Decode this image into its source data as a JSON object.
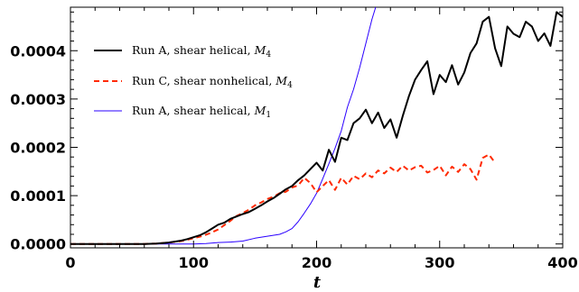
{
  "chart_data": {
    "type": "line",
    "title": "",
    "xlabel": "t",
    "ylabel": "",
    "xlim": [
      0,
      400
    ],
    "ylim": [
      -8e-06,
      0.00049
    ],
    "x_ticks": [
      0,
      100,
      200,
      300,
      400
    ],
    "x_tick_labels": [
      "0",
      "100",
      "200",
      "300",
      "400"
    ],
    "y_ticks": [
      0.0,
      0.0001,
      0.0002,
      0.0003,
      0.0004
    ],
    "y_tick_labels": [
      "0.0000",
      "0.0001",
      "0.0002",
      "0.0003",
      "0.0004"
    ],
    "legend_position": "top-left",
    "grid": false,
    "series": [
      {
        "key": "run-a-m4",
        "legend_prefix": "Run A, shear helical, ",
        "legend_symbol": "M",
        "legend_sub": "4",
        "color": "#000000",
        "line_style": "solid",
        "x": [
          0,
          20,
          40,
          60,
          70,
          80,
          90,
          95,
          100,
          105,
          110,
          115,
          120,
          125,
          130,
          135,
          140,
          145,
          150,
          155,
          160,
          165,
          170,
          175,
          180,
          185,
          190,
          195,
          200,
          205,
          210,
          215,
          220,
          225,
          230,
          235,
          240,
          245,
          250,
          255,
          260,
          265,
          270,
          275,
          280,
          285,
          290,
          295,
          300,
          305,
          310,
          315,
          320,
          325,
          330,
          335,
          340,
          345,
          350,
          355,
          360,
          365,
          370,
          375,
          380,
          385,
          390,
          395,
          400
        ],
        "y": [
          0.0,
          0.0,
          0.0,
          0.0,
          1e-06,
          3e-06,
          7e-06,
          1e-05,
          1.4e-05,
          1.8e-05,
          2.4e-05,
          3.2e-05,
          4e-05,
          4.4e-05,
          5.2e-05,
          5.7e-05,
          6.2e-05,
          6.6e-05,
          7.3e-05,
          8e-05,
          8.8e-05,
          9.5e-05,
          0.000104,
          0.000113,
          0.00012,
          0.000132,
          0.000142,
          0.000155,
          0.000168,
          0.000152,
          0.000195,
          0.00017,
          0.00022,
          0.000215,
          0.00025,
          0.00026,
          0.000278,
          0.00025,
          0.000272,
          0.00024,
          0.000258,
          0.00022,
          0.000265,
          0.000306,
          0.00034,
          0.00036,
          0.000378,
          0.00031,
          0.00035,
          0.000335,
          0.00037,
          0.00033,
          0.000355,
          0.000395,
          0.000415,
          0.00046,
          0.00047,
          0.000405,
          0.000368,
          0.00045,
          0.000435,
          0.000428,
          0.00046,
          0.00045,
          0.00042,
          0.000436,
          0.00041,
          0.00048,
          0.00047
        ]
      },
      {
        "key": "run-c-m4",
        "legend_prefix": "Run C, shear nonhelical, ",
        "legend_symbol": "M",
        "legend_sub": "4",
        "color": "#ff2a00",
        "line_style": "dashed",
        "x": [
          0,
          20,
          40,
          60,
          70,
          80,
          90,
          95,
          100,
          105,
          110,
          115,
          120,
          125,
          130,
          135,
          140,
          145,
          150,
          155,
          160,
          165,
          170,
          175,
          180,
          185,
          190,
          195,
          200,
          205,
          210,
          215,
          220,
          225,
          230,
          235,
          240,
          245,
          250,
          255,
          260,
          265,
          270,
          275,
          280,
          285,
          290,
          295,
          300,
          305,
          310,
          315,
          320,
          325,
          330,
          335,
          340,
          345
        ],
        "y": [
          0.0,
          0.0,
          0.0,
          0.0,
          1e-06,
          3e-06,
          6e-06,
          9e-06,
          1.2e-05,
          1.5e-05,
          1.9e-05,
          2.4e-05,
          3e-05,
          3.9e-05,
          4.8e-05,
          5.8e-05,
          6.4e-05,
          7.1e-05,
          8e-05,
          8.6e-05,
          9.3e-05,
          9.8e-05,
          0.000105,
          0.000108,
          0.000117,
          0.000121,
          0.000137,
          0.000126,
          0.000107,
          0.00012,
          0.000132,
          0.000112,
          0.000137,
          0.000123,
          0.000141,
          0.000134,
          0.000146,
          0.000138,
          0.000152,
          0.000146,
          0.000158,
          0.000149,
          0.000162,
          0.000152,
          0.000159,
          0.000162,
          0.000148,
          0.000153,
          0.000162,
          0.000142,
          0.00016,
          0.000149,
          0.000165,
          0.000155,
          0.000133,
          0.000178,
          0.000185,
          0.000168
        ]
      },
      {
        "key": "run-a-m1",
        "legend_prefix": "Run A, shear helical, ",
        "legend_symbol": "M",
        "legend_sub": "1",
        "color": "#2a00ff",
        "line_style": "solid-thin",
        "x": [
          0,
          40,
          80,
          100,
          110,
          120,
          130,
          140,
          150,
          160,
          170,
          175,
          180,
          185,
          190,
          195,
          200,
          205,
          210,
          215,
          220,
          225,
          230,
          235,
          240,
          245,
          248
        ],
        "y": [
          0.0,
          0.0,
          0.0,
          0.0,
          1e-06,
          3e-06,
          4e-06,
          6e-06,
          1.2e-05,
          1.6e-05,
          2e-05,
          2.5e-05,
          3.2e-05,
          4.6e-05,
          6.4e-05,
          8.3e-05,
          0.000105,
          0.000135,
          0.000166,
          0.000198,
          0.000234,
          0.000283,
          0.00032,
          0.000365,
          0.000415,
          0.000465,
          0.00049
        ]
      }
    ]
  }
}
